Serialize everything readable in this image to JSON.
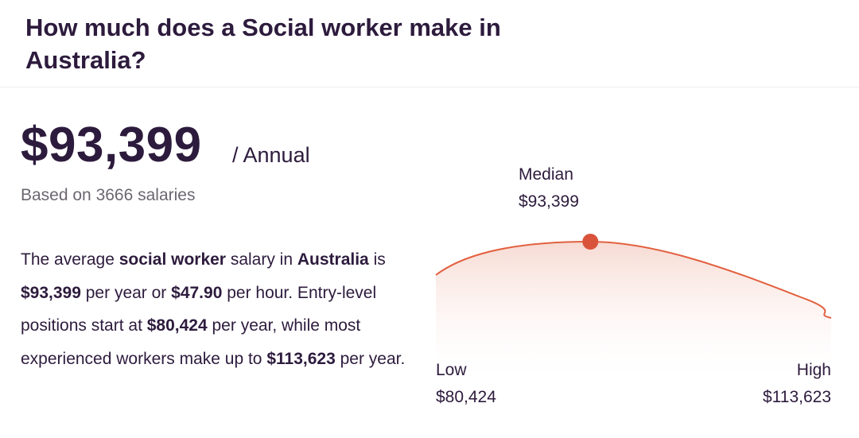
{
  "header": {
    "title": "How much does a Social worker make in Australia?"
  },
  "summary": {
    "salary": "$93,399",
    "period": "/ Annual",
    "based_on": "Based on 3666 salaries"
  },
  "description": {
    "p1": "The average ",
    "b1": "social worker",
    "p2": " salary in ",
    "b2": "Australia",
    "p3": " is ",
    "b3": "$93,399",
    "p4": " per year or ",
    "b4": "$47.90",
    "p5": " per hour. Entry-level positions start at ",
    "b5": "$80,424",
    "p6": " per year, while most experienced workers make up to ",
    "b6": "$113,623",
    "p7": " per year."
  },
  "chart": {
    "median_label": "Median",
    "median_value": "$93,399",
    "low_label": "Low",
    "low_value": "$80,424",
    "high_label": "High",
    "high_value": "$113,623",
    "curve_color": "#e2603f",
    "marker_color": "#d9533a"
  },
  "chart_data": {
    "type": "area",
    "low": 80424,
    "median": 93399,
    "high": 113623,
    "labels": [
      "Low",
      "Median",
      "High"
    ],
    "values": [
      80424,
      93399,
      113623
    ]
  }
}
